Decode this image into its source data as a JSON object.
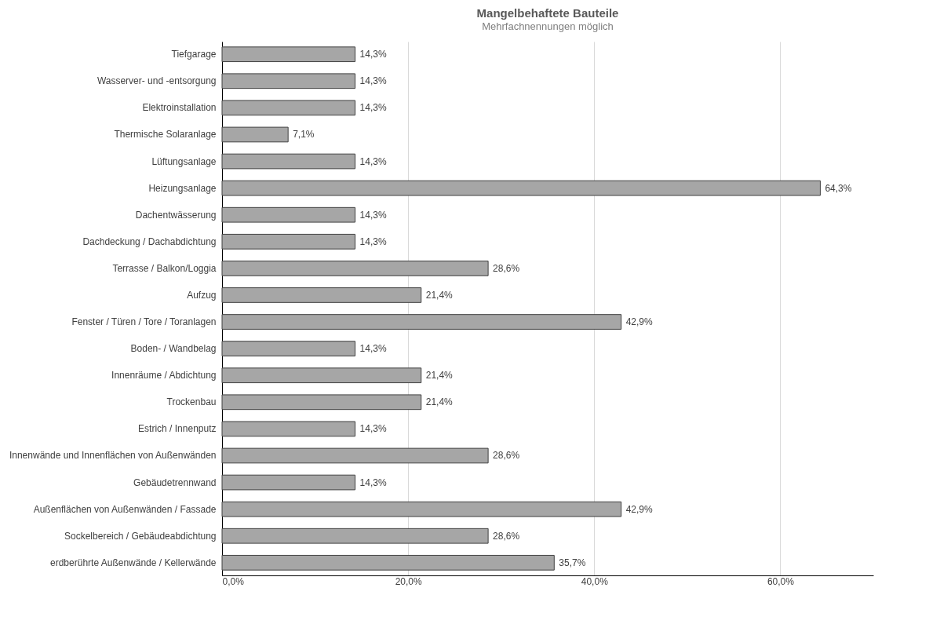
{
  "chart_data": {
    "type": "bar",
    "orientation": "horizontal",
    "title": "Mangelbehaftete Bauteile",
    "subtitle": "Mehrfachnennungen möglich",
    "categories": [
      "Tiefgarage",
      "Wasserver- und -entsorgung",
      "Elektroinstallation",
      "Thermische Solaranlage",
      "Lüftungsanlage",
      "Heizungsanlage",
      "Dachentwässerung",
      "Dachdeckung / Dachabdichtung",
      "Terrasse / Balkon/Loggia",
      "Aufzug",
      "Fenster / Türen / Tore / Toranlagen",
      "Boden- / Wandbelag",
      "Innenräume / Abdichtung",
      "Trockenbau",
      "Estrich / Innenputz",
      "Innenwände und Innenflächen von Außenwänden",
      "Gebäudetrennwand",
      "Außenflächen von Außenwänden / Fassade",
      "Sockelbereich / Gebäudeabdichtung",
      "erdberührte Außenwände / Kellerwände"
    ],
    "values": [
      14.3,
      14.3,
      14.3,
      7.1,
      14.3,
      64.3,
      14.3,
      14.3,
      28.6,
      21.4,
      42.9,
      14.3,
      21.4,
      21.4,
      14.3,
      28.6,
      14.3,
      42.9,
      28.6,
      35.7
    ],
    "value_labels": [
      "14,3%",
      "14,3%",
      "14,3%",
      "7,1%",
      "14,3%",
      "64,3%",
      "14,3%",
      "14,3%",
      "28,6%",
      "21,4%",
      "42,9%",
      "14,3%",
      "21,4%",
      "21,4%",
      "14,3%",
      "28,6%",
      "14,3%",
      "42,9%",
      "28,6%",
      "35,7%"
    ],
    "color": "#a6a6a6",
    "xlim": [
      0,
      70
    ],
    "xticks": [
      {
        "value": 0,
        "label": "0,0%"
      },
      {
        "value": 20,
        "label": "20,0%"
      },
      {
        "value": 40,
        "label": "40,0%"
      },
      {
        "value": 60,
        "label": "60,0%"
      }
    ],
    "grid": "x"
  }
}
